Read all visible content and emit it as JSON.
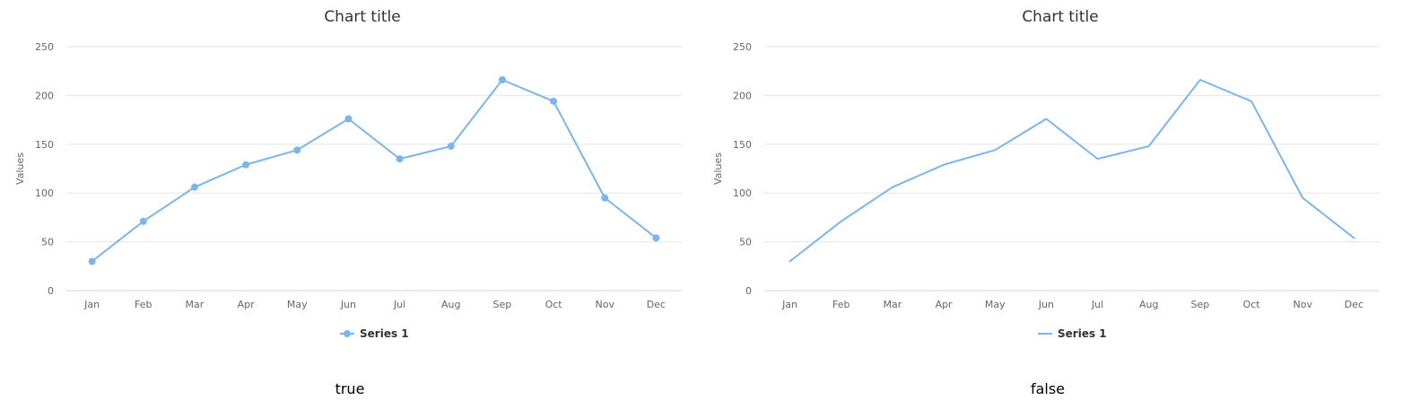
{
  "chart_data": [
    {
      "type": "line",
      "title": "Chart title",
      "xlabel": "",
      "ylabel": "Values",
      "ylim": [
        0,
        250
      ],
      "yticks": [
        "0",
        "50",
        "100",
        "150",
        "200",
        "250"
      ],
      "categories": [
        "Jan",
        "Feb",
        "Mar",
        "Apr",
        "May",
        "Jun",
        "Jul",
        "Aug",
        "Sep",
        "Oct",
        "Nov",
        "Dec"
      ],
      "series": [
        {
          "name": "Series 1",
          "values": [
            30,
            71,
            106,
            129,
            144,
            176,
            135,
            148,
            216,
            194,
            95,
            54
          ]
        }
      ],
      "markers": true,
      "grid": true,
      "legend_position": "bottom",
      "color": "#7cb5ec",
      "caption": "true"
    },
    {
      "type": "line",
      "title": "Chart title",
      "xlabel": "",
      "ylabel": "Values",
      "ylim": [
        0,
        250
      ],
      "yticks": [
        "0",
        "50",
        "100",
        "150",
        "200",
        "250"
      ],
      "categories": [
        "Jan",
        "Feb",
        "Mar",
        "Apr",
        "May",
        "Jun",
        "Jul",
        "Aug",
        "Sep",
        "Oct",
        "Nov",
        "Dec"
      ],
      "series": [
        {
          "name": "Series 1",
          "values": [
            30,
            71,
            106,
            129,
            144,
            176,
            135,
            148,
            216,
            194,
            95,
            54
          ]
        }
      ],
      "markers": false,
      "grid": true,
      "legend_position": "bottom",
      "color": "#7cb5ec",
      "caption": "false"
    }
  ]
}
